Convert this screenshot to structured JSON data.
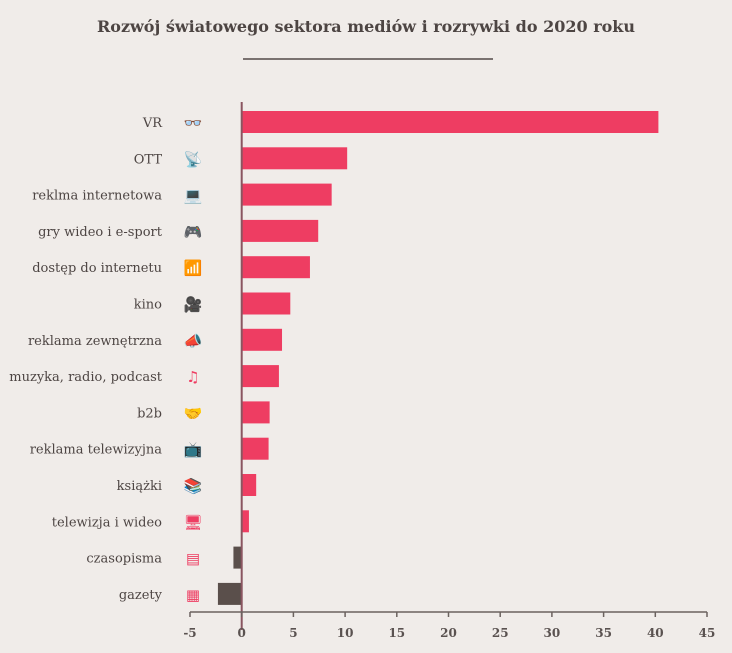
{
  "chart_data": {
    "type": "bar",
    "orientation": "horizontal",
    "title": "Rozwój światowego sektora mediów i rozrywki do 2020 roku",
    "xlabel": "",
    "ylabel": "",
    "xlim": [
      -5,
      45
    ],
    "x_ticks": [
      -5,
      0,
      5,
      10,
      15,
      20,
      25,
      30,
      35,
      40,
      45
    ],
    "grid": false,
    "legend": null,
    "categories": [
      "VR",
      "OTT",
      "reklma internetowa",
      "gry wideo i e-sport",
      "dostęp do internetu",
      "kino",
      "reklama zewnętrzna",
      "muzyka, radio, podcast",
      "b2b",
      "reklama telewizyjna",
      "książki",
      "telewizja i wideo",
      "czasopisma",
      "gazety"
    ],
    "icons": [
      "vr-glasses-icon",
      "satellite-dish-icon",
      "laptop-video-icon",
      "gamepad-icon",
      "router-icon",
      "movie-camera-icon",
      "megaphone-icon",
      "music-notes-icon",
      "handshake-icon",
      "tv-icon",
      "books-icon",
      "monitor-icon",
      "magazine-icon",
      "newspaper-icon"
    ],
    "values": [
      40.3,
      10.2,
      8.7,
      7.4,
      6.6,
      4.7,
      3.9,
      3.6,
      2.7,
      2.6,
      1.4,
      0.7,
      -0.8,
      -2.3
    ],
    "colors": {
      "positive": "#ee3d62",
      "negative": "#5a4f4b",
      "zero_line": "#8a5560",
      "axis": "#6b625f",
      "label": "#4d4543"
    }
  }
}
